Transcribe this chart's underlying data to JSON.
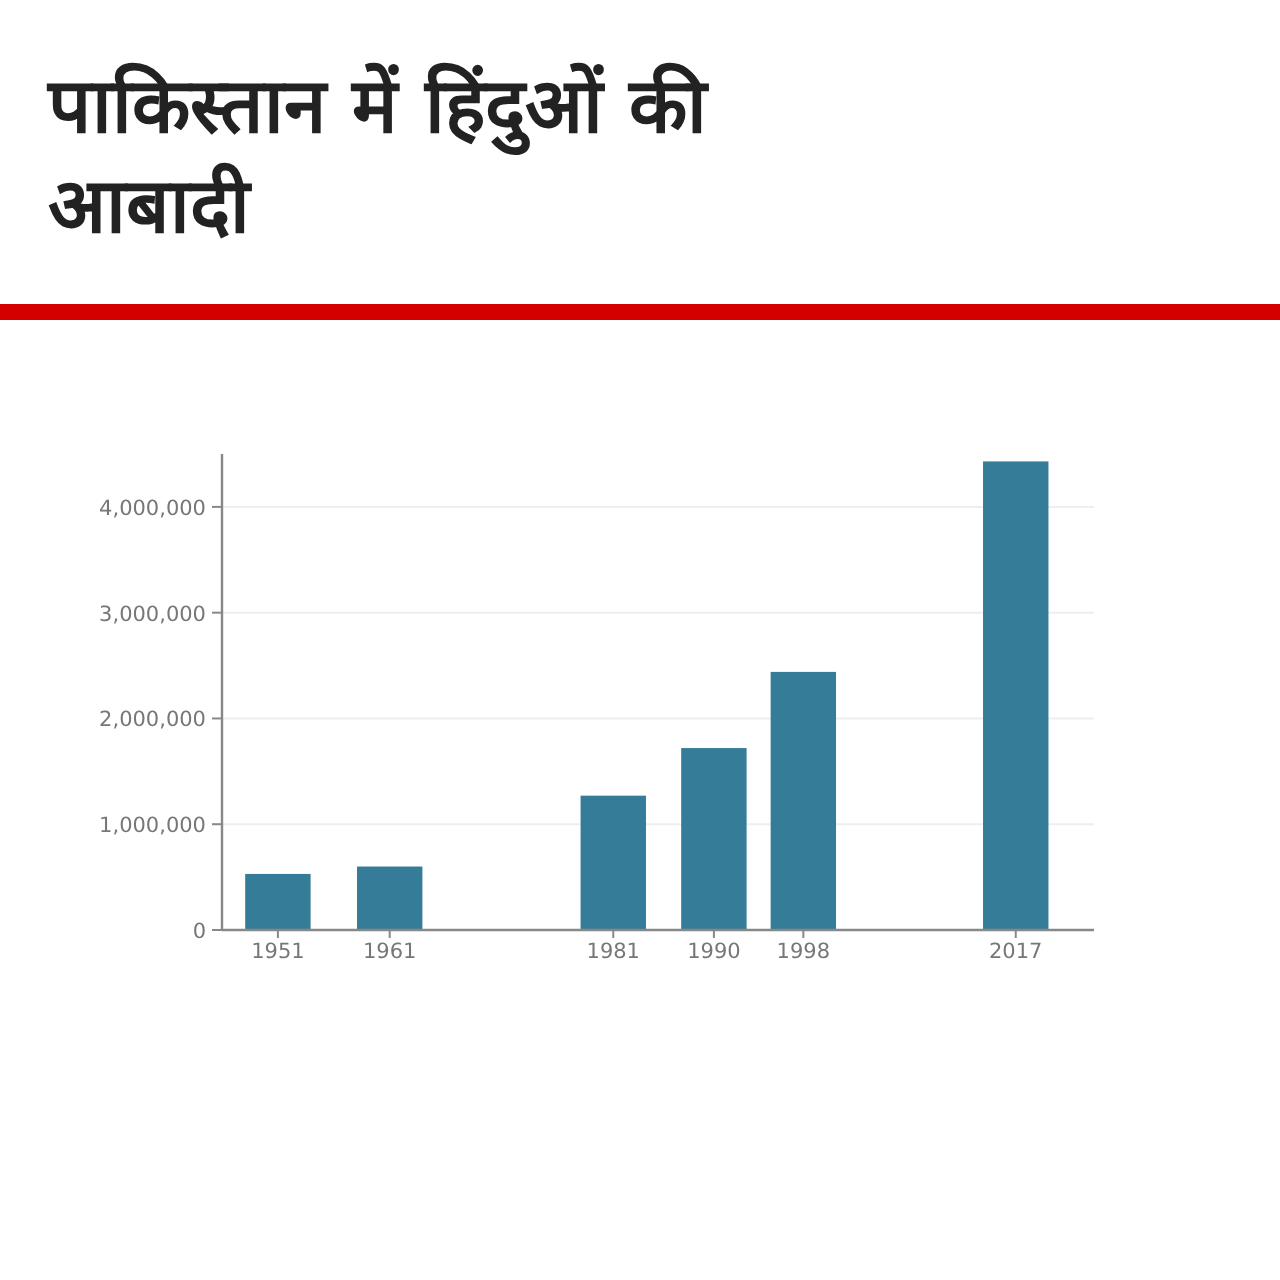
{
  "chart_data": {
    "type": "bar",
    "title": "पाकिस्तान में हिंदुओं की आबादी",
    "x": [
      1951,
      1961,
      1981,
      1990,
      1998,
      2017
    ],
    "values": [
      530000,
      600000,
      1270000,
      1720000,
      2440000,
      4430000
    ],
    "color": "#347c97",
    "xlim": [
      1946,
      2024
    ],
    "xticks": [
      1951,
      1961,
      1981,
      1990,
      1998,
      2017
    ],
    "ylim": [
      0,
      4500000
    ],
    "yticks": [
      {
        "value": 0,
        "label": "0"
      },
      {
        "value": 1000000,
        "label": "1,000,000"
      },
      {
        "value": 2000000,
        "label": "2,000,000"
      },
      {
        "value": 3000000,
        "label": "3,000,000"
      },
      {
        "value": 4000000,
        "label": "4,000,000"
      }
    ],
    "grid": "y"
  }
}
